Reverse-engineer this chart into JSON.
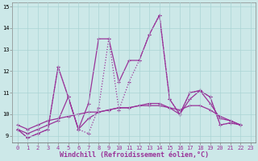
{
  "xlabel": "Windchill (Refroidissement éolien,°C)",
  "background_color": "#cce8e8",
  "line_color": "#993399",
  "xlim": [
    -0.5,
    23.5
  ],
  "ylim": [
    8.7,
    15.2
  ],
  "yticks": [
    9,
    10,
    11,
    12,
    13,
    14,
    15
  ],
  "xticks": [
    0,
    1,
    2,
    3,
    4,
    5,
    6,
    7,
    8,
    9,
    10,
    11,
    12,
    13,
    14,
    15,
    16,
    17,
    18,
    19,
    20,
    21,
    22,
    23
  ],
  "series": [
    {
      "x": [
        0,
        1,
        2,
        3,
        4,
        5,
        6,
        7,
        8,
        9,
        10,
        11,
        12,
        13,
        14,
        15,
        16,
        17,
        18,
        19,
        20,
        21,
        22
      ],
      "y": [
        9.3,
        8.9,
        9.1,
        9.3,
        12.2,
        10.8,
        9.3,
        10.5,
        13.5,
        13.5,
        11.5,
        12.5,
        12.5,
        13.7,
        14.6,
        10.7,
        10.0,
        11.0,
        11.1,
        10.8,
        9.5,
        9.6,
        9.5
      ],
      "linestyle": "-",
      "linewidth": 0.9
    },
    {
      "x": [
        0,
        1,
        2,
        3,
        4,
        5,
        6,
        7,
        8,
        9,
        10,
        11,
        12,
        13,
        14,
        15,
        16,
        17,
        18,
        19,
        20,
        21,
        22
      ],
      "y": [
        9.3,
        8.9,
        9.1,
        9.3,
        12.2,
        10.8,
        9.3,
        9.1,
        10.3,
        13.5,
        10.2,
        11.5,
        12.5,
        13.7,
        14.6,
        10.7,
        10.0,
        11.0,
        11.1,
        10.8,
        9.5,
        9.6,
        9.5
      ],
      "linestyle": "dotted",
      "linewidth": 0.9
    },
    {
      "x": [
        0,
        1,
        2,
        3,
        4,
        5,
        6,
        7,
        8,
        9,
        10,
        11,
        12,
        13,
        14,
        15,
        16,
        17,
        18,
        19,
        20,
        21,
        22
      ],
      "y": [
        9.3,
        9.1,
        9.3,
        9.5,
        9.7,
        10.8,
        9.3,
        9.8,
        10.1,
        10.2,
        10.3,
        10.3,
        10.4,
        10.5,
        10.5,
        10.3,
        10.0,
        10.7,
        11.1,
        10.5,
        9.8,
        9.7,
        9.5
      ],
      "linestyle": "-",
      "linewidth": 0.9
    },
    {
      "x": [
        0,
        1,
        2,
        3,
        4,
        5,
        6,
        7,
        8,
        9,
        10,
        11,
        12,
        13,
        14,
        15,
        16,
        17,
        18,
        19,
        20,
        21,
        22
      ],
      "y": [
        9.5,
        9.3,
        9.5,
        9.7,
        9.8,
        9.9,
        10.0,
        10.1,
        10.1,
        10.2,
        10.3,
        10.3,
        10.4,
        10.4,
        10.4,
        10.3,
        10.2,
        10.4,
        10.4,
        10.2,
        9.9,
        9.7,
        9.5
      ],
      "linestyle": "-",
      "linewidth": 0.9
    }
  ],
  "marker": "+",
  "markersize": 3,
  "grid_color": "#aad4d4",
  "tick_fontsize": 5,
  "xlabel_fontsize": 6
}
